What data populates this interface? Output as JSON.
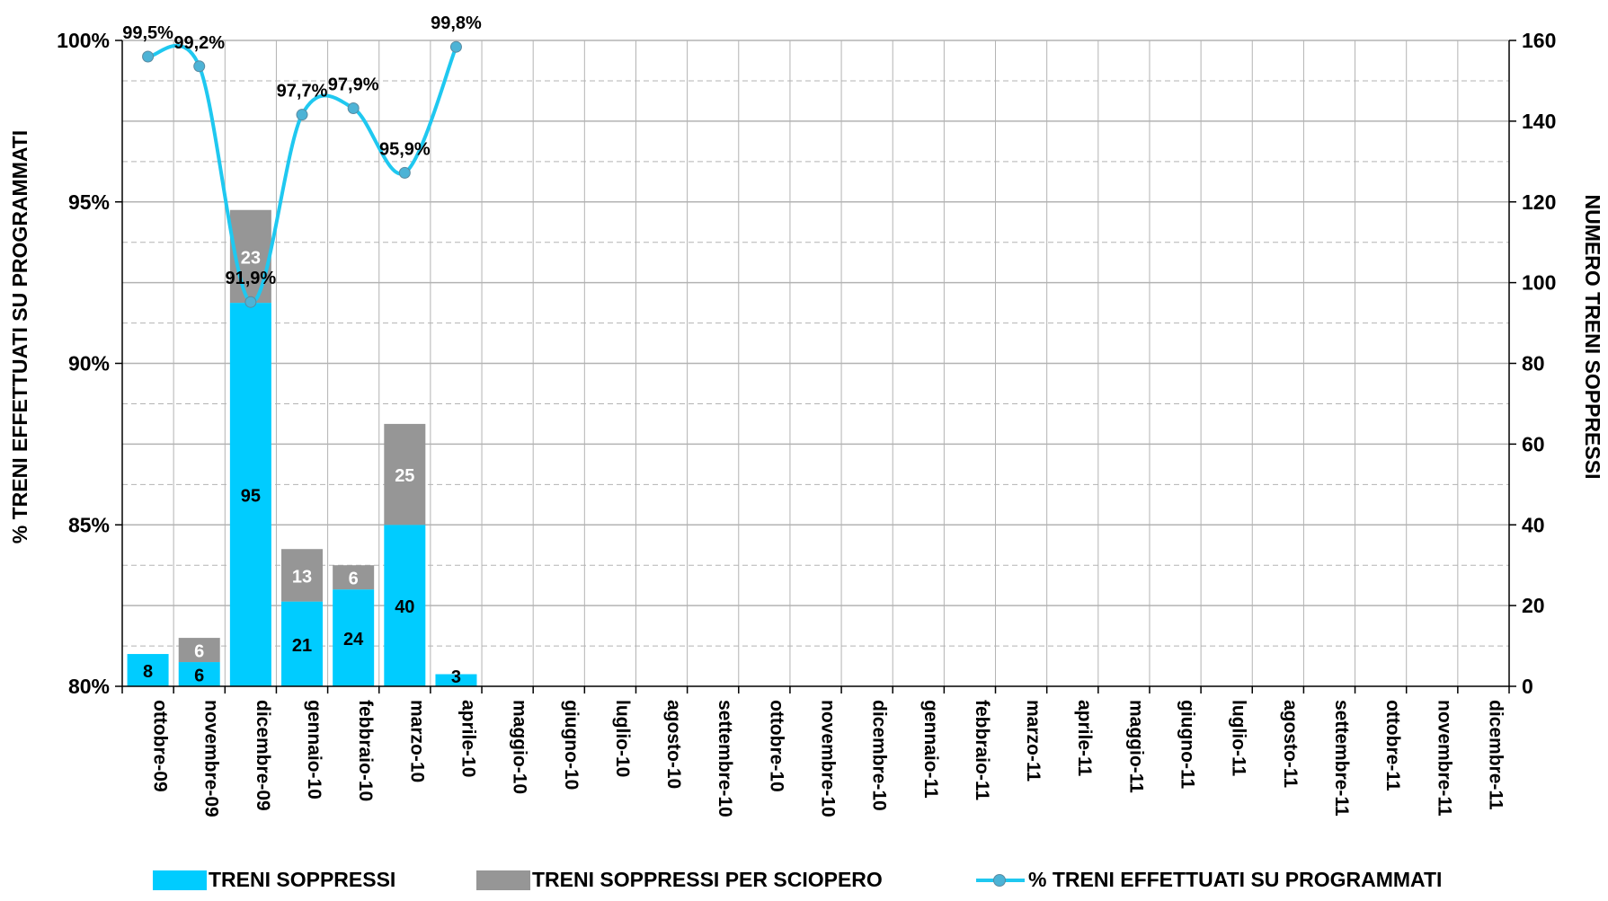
{
  "colors": {
    "soppressi": "#00ccff",
    "sciopero": "#969696",
    "line": "#1fc8f0",
    "marker": "#4db3d6",
    "grid": "#b3b3b3"
  },
  "chart_data": {
    "type": "bar",
    "stacked": true,
    "categories": [
      "ottobre-09",
      "novembre-09",
      "dicembre-09",
      "gennaio-10",
      "febbraio-10",
      "marzo-10",
      "aprile-10",
      "maggio-10",
      "giugno-10",
      "luglio-10",
      "agosto-10",
      "settembre-10",
      "ottobre-10",
      "novembre-10",
      "dicembre-10",
      "gennaio-11",
      "febbraio-11",
      "marzo-11",
      "aprile-11",
      "maggio-11",
      "giugno-11",
      "luglio-11",
      "agosto-11",
      "settembre-11",
      "ottobre-11",
      "novembre-11",
      "dicembre-11"
    ],
    "series": [
      {
        "name": "TRENI SOPPRESSI",
        "axis": "right",
        "type": "bar",
        "values": [
          8,
          6,
          95,
          21,
          24,
          40,
          3,
          null,
          null,
          null,
          null,
          null,
          null,
          null,
          null,
          null,
          null,
          null,
          null,
          null,
          null,
          null,
          null,
          null,
          null,
          null,
          null
        ],
        "labels": [
          "8",
          "6",
          "95",
          "21",
          "24",
          "40",
          "3"
        ]
      },
      {
        "name": "TRENI SOPPRESSI PER SCIOPERO",
        "axis": "right",
        "type": "bar",
        "values": [
          null,
          6,
          23,
          13,
          6,
          25,
          null,
          null,
          null,
          null,
          null,
          null,
          null,
          null,
          null,
          null,
          null,
          null,
          null,
          null,
          null,
          null,
          null,
          null,
          null,
          null,
          null
        ],
        "labels": [
          "",
          "6",
          "23",
          "13",
          "6",
          "25",
          ""
        ]
      },
      {
        "name": "% TRENI EFFETTUATI SU PROGRAMMATI",
        "axis": "left",
        "type": "line",
        "values": [
          99.5,
          99.2,
          91.9,
          97.7,
          97.9,
          95.9,
          99.8,
          null,
          null,
          null,
          null,
          null,
          null,
          null,
          null,
          null,
          null,
          null,
          null,
          null,
          null,
          null,
          null,
          null,
          null,
          null,
          null
        ],
        "labels": [
          "99,5%",
          "99,2%",
          "91,9%",
          "97,7%",
          "97,9%",
          "95,9%",
          "99,8%"
        ]
      }
    ],
    "ylabel_left": "% TRENI EFFETTUATI SU PROGRAMMATI",
    "ylabel_right": "NUMERO TRENI SOPPRESSI",
    "ylim_left": [
      80,
      100
    ],
    "ylim_right": [
      0,
      160
    ],
    "yticks_left": [
      "80%",
      "85%",
      "90%",
      "95%",
      "100%"
    ],
    "yticks_right": [
      "0",
      "20",
      "40",
      "60",
      "80",
      "100",
      "120",
      "140",
      "160"
    ],
    "grid": true,
    "legend_position": "bottom"
  }
}
